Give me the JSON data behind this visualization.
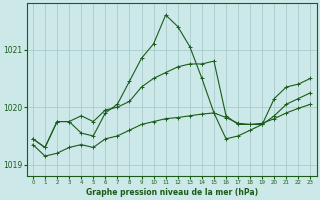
{
  "title": "Graphe pression niveau de la mer (hPa)",
  "background_color": "#cce8e8",
  "grid_color": "#aacccc",
  "line_color": "#1a5c1a",
  "ylim": [
    1018.8,
    1021.8
  ],
  "yticks": [
    1019,
    1020,
    1021
  ],
  "xlim": [
    -0.5,
    23.5
  ],
  "x_ticks": [
    0,
    1,
    2,
    3,
    4,
    5,
    6,
    7,
    8,
    9,
    10,
    11,
    12,
    13,
    14,
    15,
    16,
    17,
    18,
    19,
    20,
    21,
    22,
    23
  ],
  "series_spike": {
    "x": [
      0,
      1,
      2,
      3,
      4,
      5,
      6,
      7,
      8,
      9,
      10,
      11,
      12,
      13,
      14,
      15,
      16,
      17,
      18,
      19,
      20,
      21,
      22,
      23
    ],
    "y": [
      1019.45,
      1019.3,
      1019.75,
      1019.75,
      1019.55,
      1019.5,
      1019.9,
      1020.05,
      1020.45,
      1020.85,
      1021.1,
      1021.6,
      1021.4,
      1021.05,
      1020.5,
      1019.9,
      1019.45,
      1019.5,
      1019.6,
      1019.7,
      1019.85,
      1020.05,
      1020.15,
      1020.25
    ]
  },
  "series_mid": {
    "x": [
      0,
      1,
      2,
      3,
      4,
      5,
      6,
      7,
      8,
      9,
      10,
      11,
      12,
      13,
      14,
      15,
      16,
      17,
      18,
      19,
      20,
      21,
      22,
      23
    ],
    "y": [
      1019.45,
      1019.3,
      1019.75,
      1019.75,
      1019.85,
      1019.75,
      1019.95,
      1020.0,
      1020.1,
      1020.35,
      1020.5,
      1020.6,
      1020.7,
      1020.75,
      1020.75,
      1020.8,
      1019.85,
      1019.7,
      1019.7,
      1019.7,
      1020.15,
      1020.35,
      1020.4,
      1020.5
    ]
  },
  "series_flat": {
    "x": [
      0,
      1,
      2,
      3,
      4,
      5,
      6,
      7,
      8,
      9,
      10,
      11,
      12,
      13,
      14,
      15,
      16,
      17,
      18,
      19,
      20,
      21,
      22,
      23
    ],
    "y": [
      1019.35,
      1019.15,
      1019.2,
      1019.3,
      1019.35,
      1019.3,
      1019.45,
      1019.5,
      1019.6,
      1019.7,
      1019.75,
      1019.8,
      1019.82,
      1019.85,
      1019.88,
      1019.9,
      1019.82,
      1019.72,
      1019.7,
      1019.72,
      1019.8,
      1019.9,
      1019.98,
      1020.05
    ]
  }
}
